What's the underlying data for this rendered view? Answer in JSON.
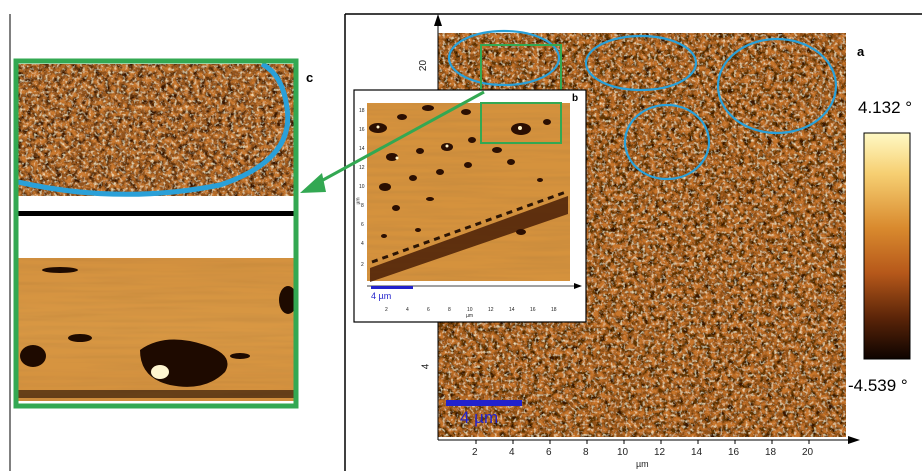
{
  "panels": {
    "a": "a",
    "b": "b",
    "c": "c"
  },
  "main_map": {
    "x_ticks": [
      "2",
      "4",
      "6",
      "8",
      "10",
      "12",
      "14",
      "16",
      "18",
      "20"
    ],
    "x_unit": "µm",
    "y_ticks": [
      "20",
      "4"
    ],
    "scalebar_label": "4 µm"
  },
  "inset_b": {
    "scalebar_label": "4 µm",
    "x_ticks": [
      "2",
      "4",
      "6",
      "8",
      "10",
      "12",
      "14",
      "16",
      "18"
    ],
    "x_unit": "µm",
    "y_ticks": [
      "18",
      "16",
      "14",
      "12",
      "10",
      "8",
      "6",
      "4",
      "2"
    ],
    "y_unit": "µm"
  },
  "colorbar": {
    "max_label": "4.132 °",
    "min_label": "-4.539 °"
  },
  "colors": {
    "highlight_green": "#33a852",
    "highlight_blue": "#2aa0d8",
    "scalebar_blue": "#2222cc"
  }
}
